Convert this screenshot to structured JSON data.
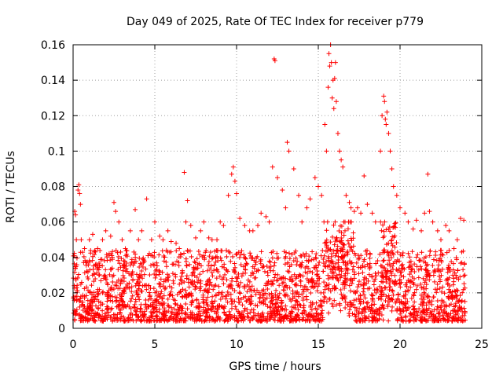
{
  "chart_data": {
    "type": "scatter",
    "title": "Day 049 of 2025, Rate Of TEC Index for receiver p779",
    "xlabel": "GPS time / hours",
    "ylabel": "ROTI / TECUs",
    "xlim": [
      0,
      25
    ],
    "ylim": [
      0,
      0.16
    ],
    "x_ticks": [
      "0",
      "5",
      "10",
      "15",
      "20",
      "25"
    ],
    "y_ticks": [
      "0",
      "0.02",
      "0.04",
      "0.06",
      "0.08",
      "0.1",
      "0.12",
      "0.14",
      "0.16"
    ],
    "grid": true,
    "marker": "plus",
    "color": "#ff0000",
    "series": [
      {
        "x": [
          0.1,
          0.15,
          0.2,
          0.3,
          0.35,
          0.4,
          0.45,
          0.5,
          0.7,
          1.0,
          1.2,
          1.5,
          1.8,
          2.0,
          2.3,
          2.5,
          2.6,
          2.8,
          3.0,
          3.2,
          3.5,
          3.8,
          4.0,
          4.2,
          4.5,
          4.8,
          5.0,
          5.3,
          5.5,
          5.8,
          6.0,
          6.3,
          6.5,
          6.8,
          6.9,
          7.0,
          7.2,
          7.5,
          7.8,
          8.0,
          8.3,
          8.5,
          8.8,
          9.0,
          9.2,
          9.5,
          9.7,
          9.8,
          9.9,
          10.0,
          10.2,
          10.5,
          10.8,
          11.0,
          11.3,
          11.5,
          11.8,
          12.0,
          12.2,
          12.3,
          12.35,
          12.5,
          12.8,
          13.0,
          13.1,
          13.2,
          13.5,
          13.8,
          14.0,
          14.3,
          14.5,
          14.8,
          15.0,
          15.2,
          15.4,
          15.5,
          15.6,
          15.65,
          15.7,
          15.75,
          15.8,
          15.85,
          15.9,
          15.95,
          16.0,
          16.05,
          16.1,
          16.2,
          16.3,
          16.4,
          16.5,
          16.7,
          16.9,
          17.0,
          17.2,
          17.4,
          17.6,
          17.8,
          18.0,
          18.3,
          18.5,
          18.8,
          18.9,
          19.0,
          19.05,
          19.1,
          19.15,
          19.2,
          19.3,
          19.4,
          19.5,
          19.6,
          19.8,
          20.0,
          20.3,
          20.5,
          20.8,
          21.0,
          21.3,
          21.5,
          21.7,
          21.8,
          22.0,
          22.3,
          22.5,
          22.8,
          23.0,
          23.3,
          23.5,
          23.7,
          23.9
        ],
        "y": [
          0.066,
          0.064,
          0.05,
          0.078,
          0.081,
          0.076,
          0.07,
          0.05,
          0.045,
          0.05,
          0.053,
          0.045,
          0.05,
          0.055,
          0.052,
          0.071,
          0.066,
          0.06,
          0.05,
          0.045,
          0.055,
          0.067,
          0.05,
          0.055,
          0.073,
          0.05,
          0.06,
          0.052,
          0.05,
          0.055,
          0.049,
          0.048,
          0.045,
          0.088,
          0.06,
          0.072,
          0.058,
          0.051,
          0.055,
          0.06,
          0.051,
          0.05,
          0.05,
          0.06,
          0.058,
          0.075,
          0.087,
          0.091,
          0.083,
          0.076,
          0.062,
          0.058,
          0.055,
          0.055,
          0.058,
          0.065,
          0.063,
          0.06,
          0.091,
          0.152,
          0.151,
          0.085,
          0.078,
          0.068,
          0.105,
          0.1,
          0.09,
          0.075,
          0.06,
          0.068,
          0.073,
          0.085,
          0.08,
          0.075,
          0.115,
          0.1,
          0.136,
          0.155,
          0.148,
          0.16,
          0.15,
          0.13,
          0.14,
          0.124,
          0.141,
          0.15,
          0.128,
          0.11,
          0.1,
          0.095,
          0.091,
          0.075,
          0.071,
          0.068,
          0.066,
          0.068,
          0.065,
          0.086,
          0.07,
          0.065,
          0.06,
          0.1,
          0.12,
          0.131,
          0.128,
          0.118,
          0.115,
          0.122,
          0.11,
          0.1,
          0.09,
          0.08,
          0.075,
          0.068,
          0.065,
          0.06,
          0.056,
          0.061,
          0.055,
          0.065,
          0.087,
          0.066,
          0.06,
          0.055,
          0.05,
          0.058,
          0.055,
          0.045,
          0.05,
          0.062,
          0.061
        ]
      }
    ],
    "background_band": "dense scatter of points between about 0.005 and 0.04 across all hours"
  }
}
